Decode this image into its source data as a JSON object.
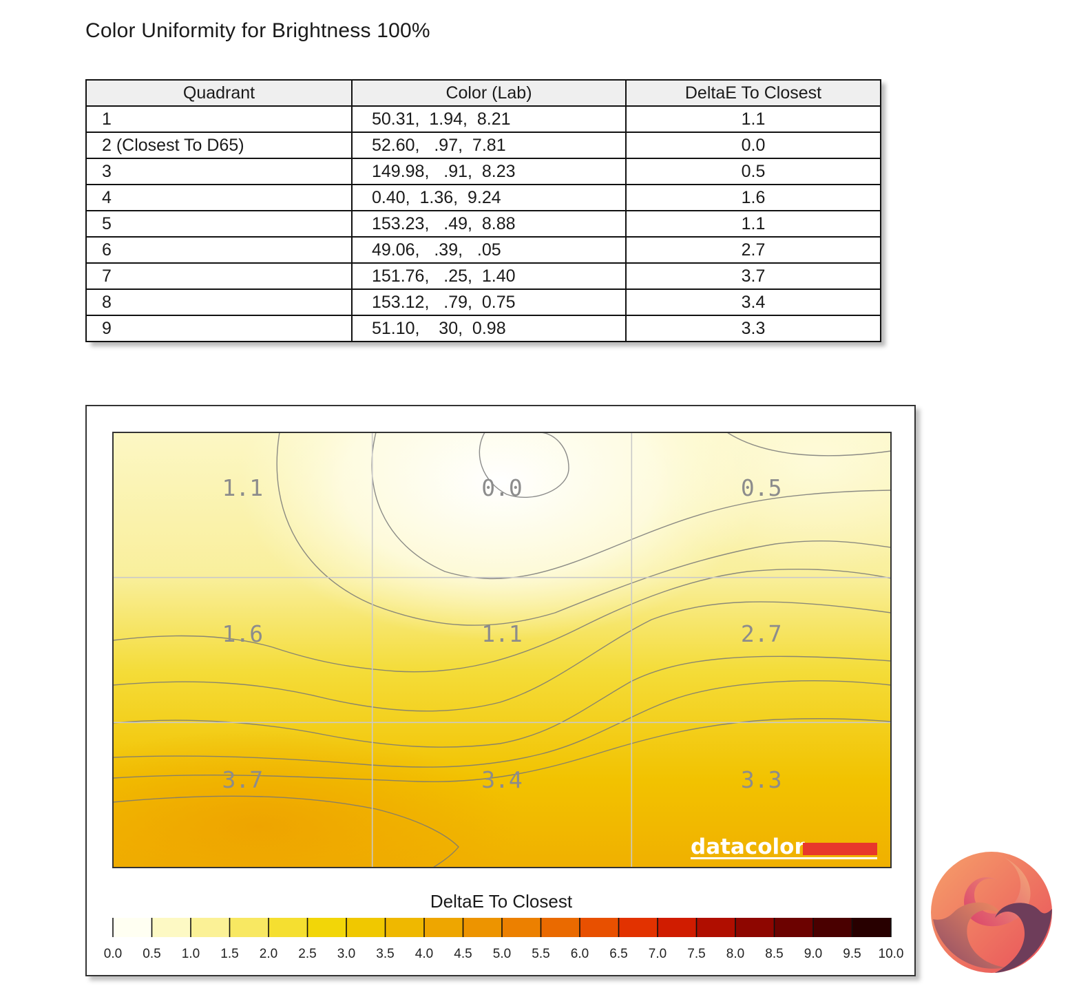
{
  "page": {
    "title": "Color Uniformity for Brightness 100%"
  },
  "table": {
    "headers": [
      "Quadrant",
      "Color (Lab)",
      "DeltaE To Closest"
    ],
    "rows": [
      {
        "quadrant": "1",
        "lab": "50.31,  1.94,  8.21",
        "deltae": "1.1"
      },
      {
        "quadrant": "2 (Closest To D65)",
        "lab": "52.60,   .97,  7.81",
        "deltae": "0.0"
      },
      {
        "quadrant": "3",
        "lab": "149.98,   .91,  8.23",
        "deltae": "0.5"
      },
      {
        "quadrant": "4",
        "lab": "0.40,  1.36,  9.24",
        "deltae": "1.6"
      },
      {
        "quadrant": "5",
        "lab": "153.23,   .49,  8.88",
        "deltae": "1.1"
      },
      {
        "quadrant": "6",
        "lab": "49.06,   .39,   .05",
        "deltae": "2.7"
      },
      {
        "quadrant": "7",
        "lab": "151.76,   .25,  1.40",
        "deltae": "3.7"
      },
      {
        "quadrant": "8",
        "lab": "153.12,   .79,  0.75",
        "deltae": "3.4"
      },
      {
        "quadrant": "9",
        "lab": "51.10,    30,  0.98",
        "deltae": "3.3"
      }
    ]
  },
  "chart_data": {
    "type": "heatmap",
    "title": "",
    "grid": true,
    "rows": 3,
    "cols": 3,
    "values": [
      [
        1.1,
        0.0,
        0.5
      ],
      [
        1.6,
        1.1,
        2.7
      ],
      [
        3.7,
        3.4,
        3.3
      ]
    ],
    "cell_labels": [
      [
        "1.1",
        "0.0",
        "0.5"
      ],
      [
        "1.6",
        "1.1",
        "2.7"
      ],
      [
        "3.7",
        "3.4",
        "3.3"
      ]
    ],
    "colorbar": {
      "title": "DeltaE To Closest",
      "min": 0.0,
      "max": 10.0,
      "step": 0.5,
      "tick_labels": [
        "0.0",
        "0.5",
        "1.0",
        "1.5",
        "2.0",
        "2.5",
        "3.0",
        "3.5",
        "4.0",
        "4.5",
        "5.0",
        "5.5",
        "6.0",
        "6.5",
        "7.0",
        "7.5",
        "8.0",
        "8.5",
        "9.0",
        "9.5",
        "10.0"
      ],
      "colors": [
        "#fffff2",
        "#fdf9c4",
        "#fbf196",
        "#f8e862",
        "#f5df30",
        "#f2d608",
        "#f0c800",
        "#efb800",
        "#eea600",
        "#ed9400",
        "#ec8000",
        "#ea6a00",
        "#e85000",
        "#e23200",
        "#d01c00",
        "#b00e00",
        "#8e0600",
        "#6c0200",
        "#4a0000",
        "#280000"
      ]
    },
    "watermark": "datacolor",
    "brand_color": "#e8372b"
  }
}
